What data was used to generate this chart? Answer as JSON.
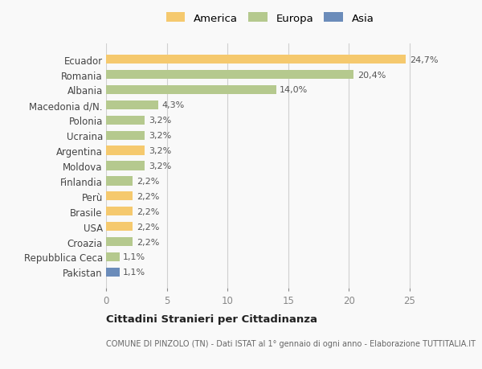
{
  "categories": [
    "Pakistan",
    "Repubblica Ceca",
    "Croazia",
    "USA",
    "Brasile",
    "Perù",
    "Finlandia",
    "Moldova",
    "Argentina",
    "Ucraina",
    "Polonia",
    "Macedonia d/N.",
    "Albania",
    "Romania",
    "Ecuador"
  ],
  "values": [
    1.1,
    1.1,
    2.2,
    2.2,
    2.2,
    2.2,
    2.2,
    3.2,
    3.2,
    3.2,
    3.2,
    4.3,
    14.0,
    20.4,
    24.7
  ],
  "colors": [
    "#6b8cba",
    "#b5c98e",
    "#b5c98e",
    "#f5c96e",
    "#f5c96e",
    "#f5c96e",
    "#b5c98e",
    "#b5c98e",
    "#f5c96e",
    "#b5c98e",
    "#b5c98e",
    "#b5c98e",
    "#b5c98e",
    "#b5c98e",
    "#f5c96e"
  ],
  "labels": [
    "1,1%",
    "1,1%",
    "2,2%",
    "2,2%",
    "2,2%",
    "2,2%",
    "2,2%",
    "3,2%",
    "3,2%",
    "3,2%",
    "3,2%",
    "4,3%",
    "14,0%",
    "20,4%",
    "24,7%"
  ],
  "legend_labels": [
    "America",
    "Europa",
    "Asia"
  ],
  "legend_colors": [
    "#f5c96e",
    "#b5c98e",
    "#6b8cba"
  ],
  "title": "Cittadini Stranieri per Cittadinanza",
  "subtitle": "COMUNE DI PINZOLO (TN) - Dati ISTAT al 1° gennaio di ogni anno - Elaborazione TUTTITALIA.IT",
  "xlim": [
    0,
    27
  ],
  "xticks": [
    0,
    5,
    10,
    15,
    20,
    25
  ],
  "background_color": "#f9f9f9",
  "bar_height": 0.6,
  "grid_color": "#d0d0d0"
}
